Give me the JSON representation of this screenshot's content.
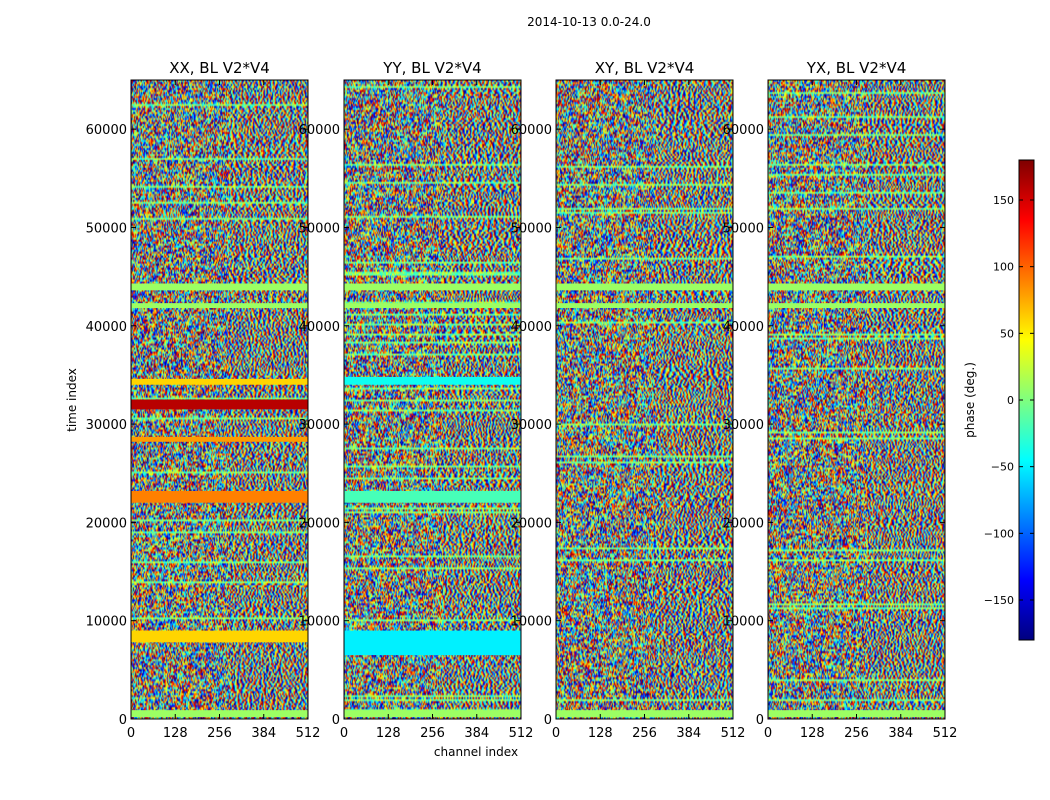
{
  "figure": {
    "suptitle": "2014-10-13 0.0-24.0"
  },
  "chart_data": {
    "type": "heatmap",
    "panels": [
      {
        "title": "XX, BL V2*V4",
        "variant": 0
      },
      {
        "title": "YY, BL V2*V4",
        "variant": 1
      },
      {
        "title": "XY, BL V2*V4",
        "variant": 2
      },
      {
        "title": "YX, BL V2*V4",
        "variant": 3
      }
    ],
    "xlabel": "channel index",
    "ylabel": "time index",
    "xlim": [
      0,
      512
    ],
    "ylim": [
      0,
      65000
    ],
    "xticks": [
      "0",
      "128",
      "256",
      "384",
      "512"
    ],
    "xtick_values": [
      0,
      128,
      256,
      384,
      512
    ],
    "yticks": [
      "0",
      "10000",
      "20000",
      "30000",
      "40000",
      "50000",
      "60000"
    ],
    "ytick_values": [
      0,
      10000,
      20000,
      30000,
      40000,
      50000,
      60000
    ],
    "colorbar": {
      "label": "phase (deg.)",
      "min": -180,
      "max": 180,
      "ticks": [
        "−150",
        "−100",
        "−50",
        "0",
        "50",
        "100",
        "150"
      ],
      "tick_values": [
        -150,
        -100,
        -50,
        0,
        50,
        100,
        150
      ],
      "colormap": "jet"
    },
    "bands": [
      {
        "panels": [
          0
        ],
        "time_range": [
          31500,
          32500
        ],
        "phase": 160
      },
      {
        "panels": [
          0
        ],
        "time_range": [
          34000,
          34600
        ],
        "phase": 60
      },
      {
        "panels": [
          0
        ],
        "time_range": [
          28200,
          28700
        ],
        "phase": 80
      },
      {
        "panels": [
          0
        ],
        "time_range": [
          22000,
          23200
        ],
        "phase": 90
      },
      {
        "panels": [
          0
        ],
        "time_range": [
          7800,
          9000
        ],
        "phase": 60
      },
      {
        "panels": [
          1
        ],
        "time_range": [
          34000,
          34800
        ],
        "phase": -40
      },
      {
        "panels": [
          1
        ],
        "time_range": [
          22000,
          23200
        ],
        "phase": -20
      },
      {
        "panels": [
          1
        ],
        "time_range": [
          6500,
          9000
        ],
        "phase": -50
      },
      {
        "panels": [
          0,
          1,
          2,
          3
        ],
        "time_range": [
          43600,
          44300
        ],
        "phase": 10
      },
      {
        "panels": [
          0,
          1,
          2,
          3
        ],
        "time_range": [
          41800,
          42300
        ],
        "phase": 10
      },
      {
        "panels": [
          0,
          1,
          2,
          3
        ],
        "time_range": [
          200,
          900
        ],
        "phase": 10
      }
    ]
  }
}
